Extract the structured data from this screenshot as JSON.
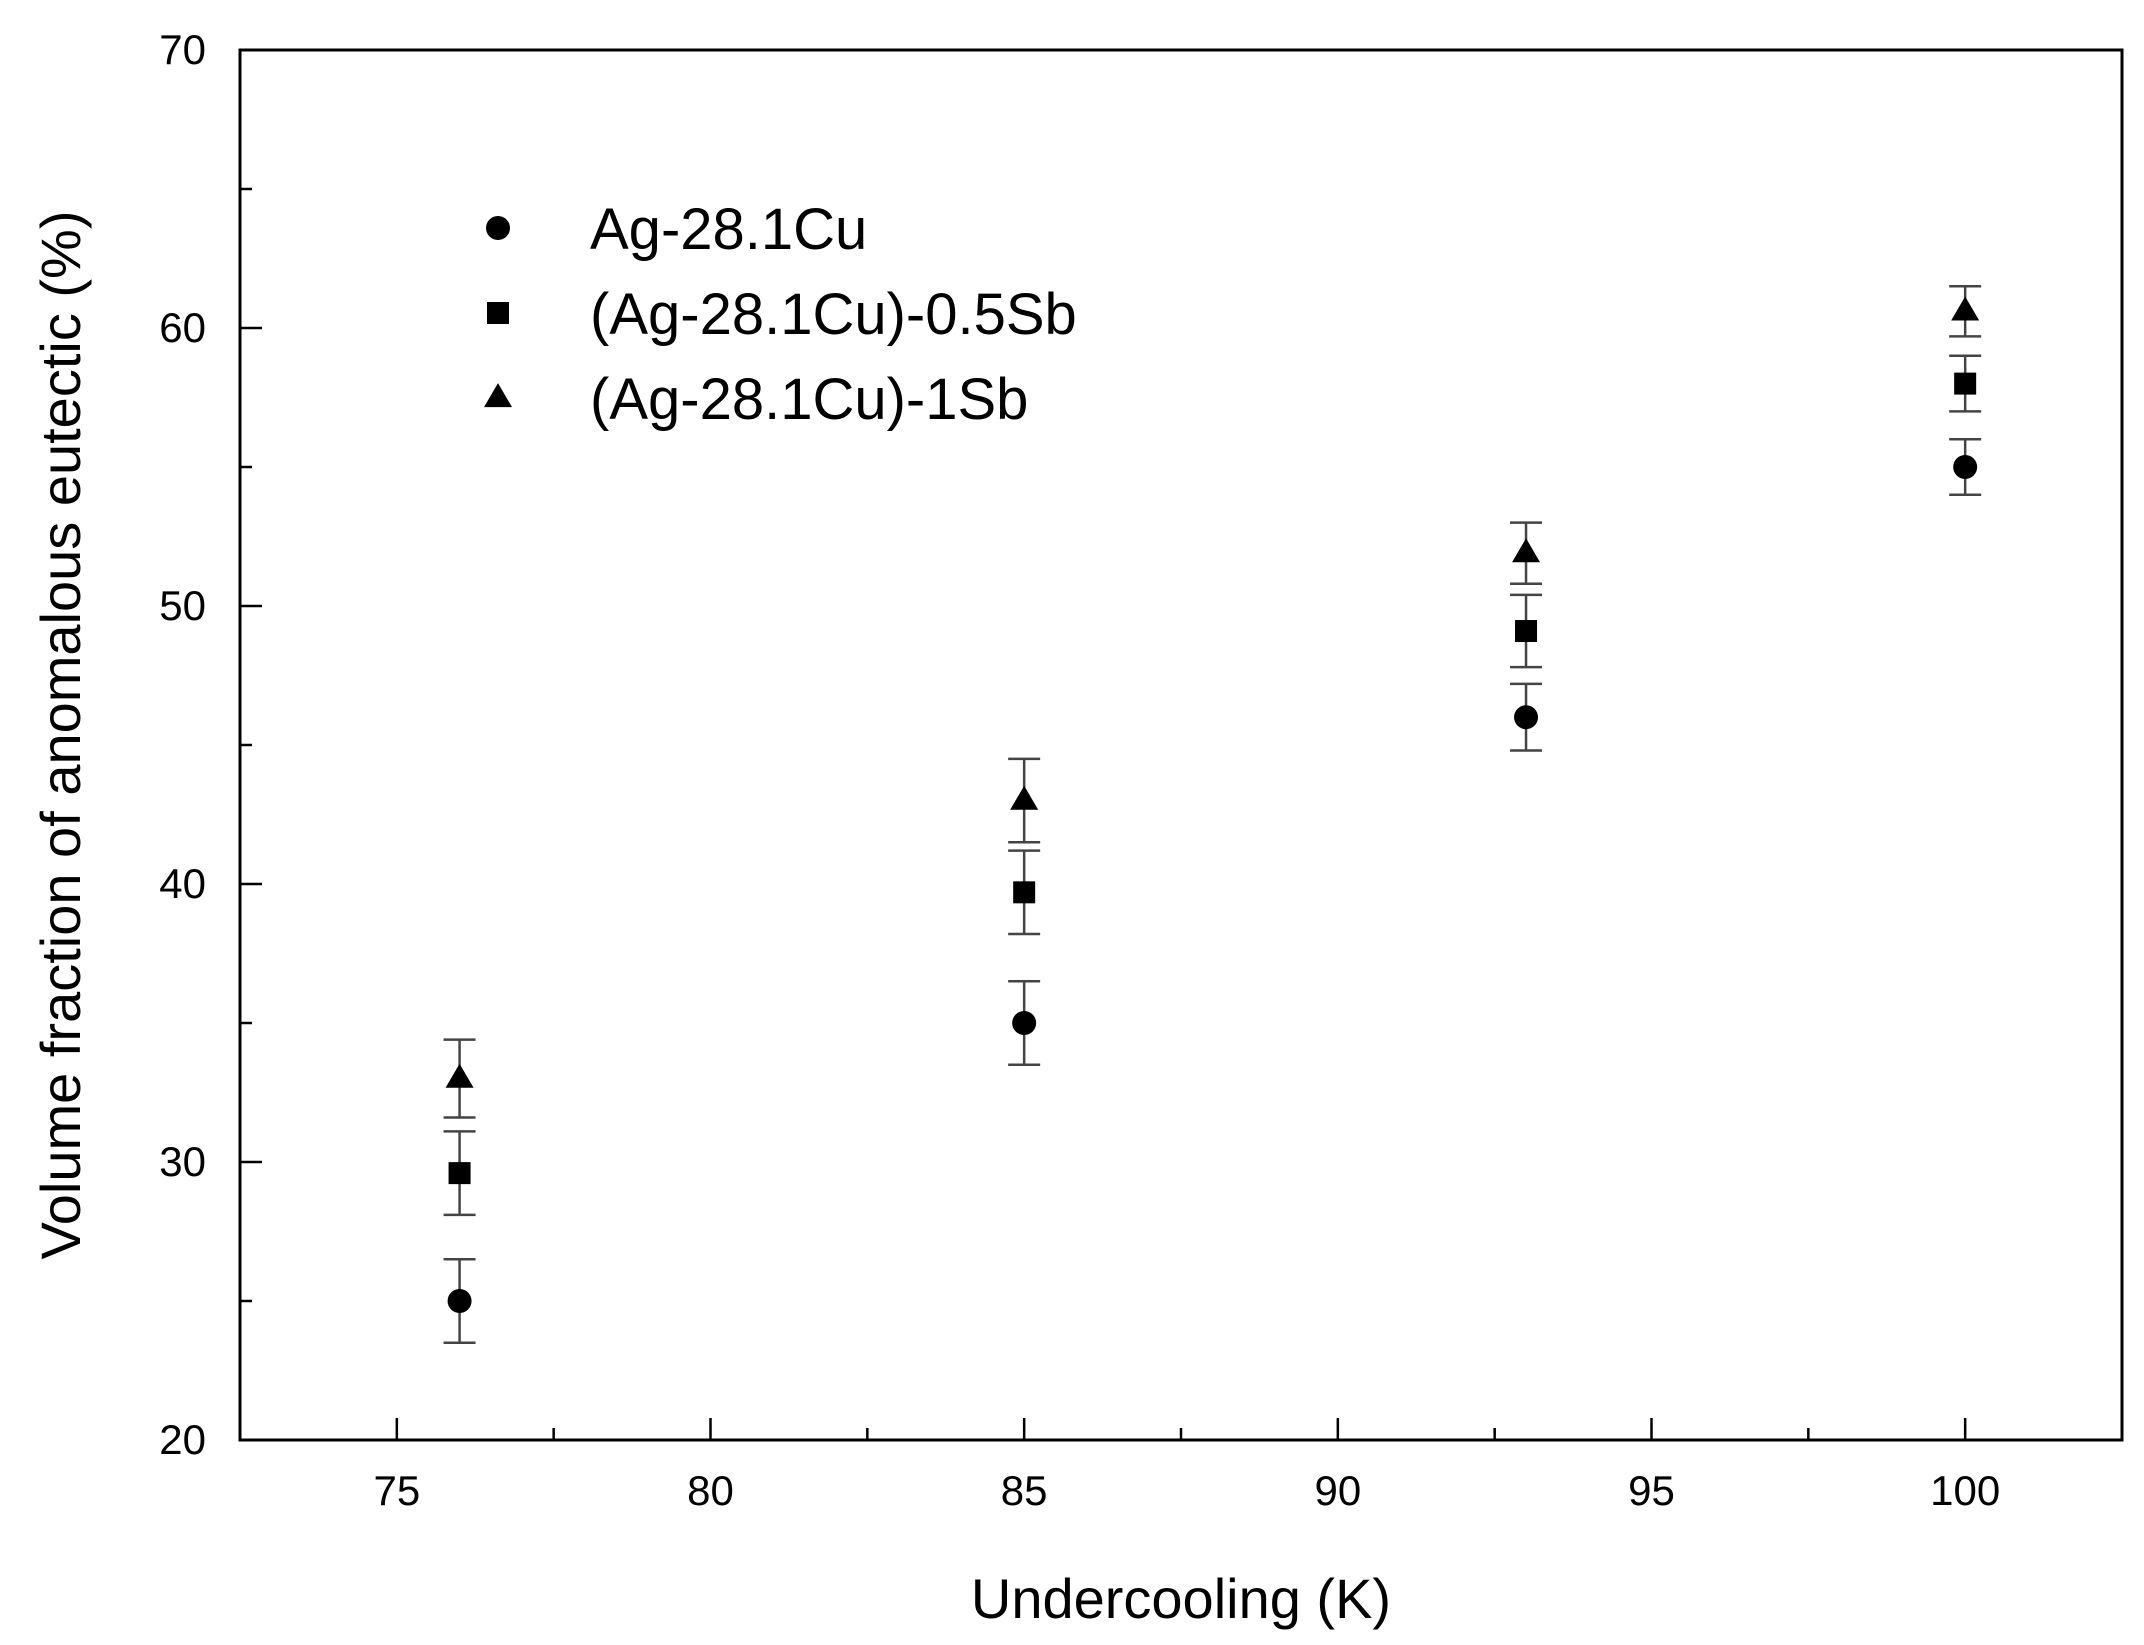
{
  "chart_data": {
    "type": "scatter",
    "title": "",
    "xlabel": "Undercooling (K)",
    "ylabel": "Volume fraction of anomalous eutectic (%)",
    "xlim": [
      72.5,
      102.5
    ],
    "ylim": [
      20,
      70
    ],
    "x_ticks": [
      75,
      80,
      85,
      90,
      95,
      100
    ],
    "y_ticks": [
      20,
      30,
      40,
      50,
      60,
      70
    ],
    "x_tick_labels": [
      "75",
      "80",
      "85",
      "90",
      "95",
      "100"
    ],
    "y_tick_labels": [
      "20",
      "30",
      "40",
      "50",
      "60",
      "70"
    ],
    "grid": false,
    "legend_position": "top-left",
    "series": [
      {
        "name": "Ag-28.1Cu",
        "marker": "circle",
        "x": [
          76,
          85,
          93,
          100
        ],
        "y": [
          25,
          35,
          46,
          55
        ],
        "error": [
          1.5,
          1.5,
          1.2,
          1.0
        ]
      },
      {
        "name": "(Ag-28.1Cu)-0.5Sb",
        "marker": "square",
        "x": [
          76,
          85,
          93,
          100
        ],
        "y": [
          29.6,
          39.7,
          49.1,
          58
        ],
        "error": [
          1.5,
          1.5,
          1.3,
          1.0
        ]
      },
      {
        "name": "(Ag-28.1Cu)-1Sb",
        "marker": "triangle",
        "x": [
          76,
          85,
          93,
          100
        ],
        "y": [
          33,
          43,
          51.9,
          60.6
        ],
        "error": [
          1.4,
          1.5,
          1.1,
          0.9
        ]
      }
    ]
  }
}
